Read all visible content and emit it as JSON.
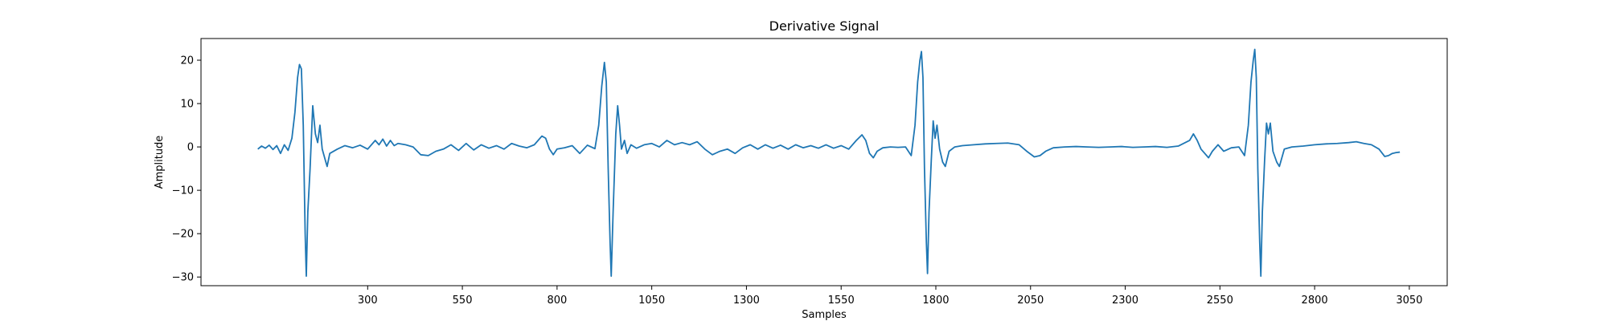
{
  "chart_data": {
    "type": "line",
    "title": "Derivative Signal",
    "xlabel": "Samples",
    "ylabel": "Amplitude",
    "xlim": [
      -140,
      3150
    ],
    "ylim": [
      -32,
      25
    ],
    "xticks": [
      300,
      550,
      800,
      1050,
      1300,
      1550,
      1800,
      2050,
      2300,
      2550,
      2800,
      3050
    ],
    "yticks": [
      -30,
      -20,
      -10,
      0,
      10,
      20
    ],
    "grid": false,
    "color": "#1f77b4",
    "series": [
      {
        "points": [
          [
            10,
            -0.5
          ],
          [
            20,
            0.2
          ],
          [
            30,
            -0.3
          ],
          [
            40,
            0.4
          ],
          [
            50,
            -0.6
          ],
          [
            60,
            0.3
          ],
          [
            70,
            -1.5
          ],
          [
            80,
            0.5
          ],
          [
            90,
            -0.8
          ],
          [
            100,
            2
          ],
          [
            108,
            8
          ],
          [
            115,
            16
          ],
          [
            120,
            19
          ],
          [
            125,
            18
          ],
          [
            130,
            5
          ],
          [
            135,
            -20
          ],
          [
            138,
            -29.8
          ],
          [
            142,
            -15
          ],
          [
            148,
            -5
          ],
          [
            155,
            9.5
          ],
          [
            162,
            3
          ],
          [
            168,
            1
          ],
          [
            174,
            5
          ],
          [
            180,
            -0.5
          ],
          [
            188,
            -3
          ],
          [
            193,
            -4.5
          ],
          [
            200,
            -1.5
          ],
          [
            220,
            -0.5
          ],
          [
            240,
            0.3
          ],
          [
            260,
            -0.2
          ],
          [
            280,
            0.4
          ],
          [
            300,
            -0.5
          ],
          [
            320,
            1.5
          ],
          [
            330,
            0.5
          ],
          [
            340,
            1.8
          ],
          [
            350,
            0.2
          ],
          [
            360,
            1.5
          ],
          [
            370,
            0.3
          ],
          [
            380,
            0.8
          ],
          [
            400,
            0.5
          ],
          [
            420,
            0
          ],
          [
            440,
            -1.8
          ],
          [
            460,
            -2
          ],
          [
            480,
            -1
          ],
          [
            500,
            -0.5
          ],
          [
            520,
            0.5
          ],
          [
            540,
            -0.8
          ],
          [
            560,
            0.8
          ],
          [
            580,
            -0.7
          ],
          [
            600,
            0.5
          ],
          [
            620,
            -0.3
          ],
          [
            640,
            0.3
          ],
          [
            660,
            -0.5
          ],
          [
            680,
            0.8
          ],
          [
            700,
            0.2
          ],
          [
            720,
            -0.2
          ],
          [
            740,
            0.5
          ],
          [
            760,
            2.5
          ],
          [
            770,
            2
          ],
          [
            780,
            -0.5
          ],
          [
            790,
            -1.8
          ],
          [
            800,
            -0.5
          ],
          [
            820,
            -0.2
          ],
          [
            840,
            0.3
          ],
          [
            860,
            -1.5
          ],
          [
            880,
            0.4
          ],
          [
            900,
            -0.4
          ],
          [
            910,
            5
          ],
          [
            918,
            14
          ],
          [
            925,
            19.5
          ],
          [
            930,
            15
          ],
          [
            935,
            -5
          ],
          [
            940,
            -22
          ],
          [
            943,
            -29.8
          ],
          [
            948,
            -15
          ],
          [
            955,
            3
          ],
          [
            960,
            9.5
          ],
          [
            965,
            5
          ],
          [
            970,
            -0.5
          ],
          [
            978,
            1.5
          ],
          [
            985,
            -1.5
          ],
          [
            995,
            0.5
          ],
          [
            1010,
            -0.3
          ],
          [
            1030,
            0.5
          ],
          [
            1050,
            0.8
          ],
          [
            1070,
            0
          ],
          [
            1090,
            1.5
          ],
          [
            1110,
            0.5
          ],
          [
            1130,
            1
          ],
          [
            1150,
            0.5
          ],
          [
            1170,
            1.2
          ],
          [
            1190,
            -0.5
          ],
          [
            1210,
            -1.8
          ],
          [
            1230,
            -1
          ],
          [
            1250,
            -0.5
          ],
          [
            1270,
            -1.5
          ],
          [
            1290,
            -0.2
          ],
          [
            1310,
            0.5
          ],
          [
            1330,
            -0.5
          ],
          [
            1350,
            0.5
          ],
          [
            1370,
            -0.3
          ],
          [
            1390,
            0.4
          ],
          [
            1410,
            -0.5
          ],
          [
            1430,
            0.5
          ],
          [
            1450,
            -0.2
          ],
          [
            1470,
            0.3
          ],
          [
            1490,
            -0.3
          ],
          [
            1510,
            0.5
          ],
          [
            1530,
            -0.3
          ],
          [
            1550,
            0.3
          ],
          [
            1570,
            -0.5
          ],
          [
            1590,
            1.5
          ],
          [
            1605,
            2.8
          ],
          [
            1615,
            1.5
          ],
          [
            1625,
            -1.5
          ],
          [
            1635,
            -2.5
          ],
          [
            1645,
            -1
          ],
          [
            1660,
            -0.2
          ],
          [
            1680,
            0
          ],
          [
            1700,
            -0.1
          ],
          [
            1720,
            0
          ],
          [
            1735,
            -2
          ],
          [
            1745,
            5
          ],
          [
            1752,
            15
          ],
          [
            1758,
            20
          ],
          [
            1762,
            22
          ],
          [
            1766,
            16
          ],
          [
            1770,
            -5
          ],
          [
            1775,
            -22
          ],
          [
            1778,
            -29.2
          ],
          [
            1782,
            -15
          ],
          [
            1788,
            -3
          ],
          [
            1793,
            6
          ],
          [
            1798,
            2
          ],
          [
            1803,
            5
          ],
          [
            1810,
            -0.5
          ],
          [
            1818,
            -3.5
          ],
          [
            1825,
            -4.5
          ],
          [
            1835,
            -1
          ],
          [
            1850,
            0
          ],
          [
            1870,
            0.3
          ],
          [
            1900,
            0.5
          ],
          [
            1930,
            0.7
          ],
          [
            1960,
            0.8
          ],
          [
            1990,
            0.9
          ],
          [
            2020,
            0.5
          ],
          [
            2040,
            -1
          ],
          [
            2060,
            -2.3
          ],
          [
            2075,
            -2
          ],
          [
            2090,
            -1
          ],
          [
            2110,
            -0.2
          ],
          [
            2140,
            0
          ],
          [
            2170,
            0.1
          ],
          [
            2200,
            0
          ],
          [
            2230,
            -0.1
          ],
          [
            2260,
            0
          ],
          [
            2290,
            0.1
          ],
          [
            2320,
            -0.1
          ],
          [
            2350,
            0
          ],
          [
            2380,
            0.1
          ],
          [
            2410,
            -0.1
          ],
          [
            2440,
            0.2
          ],
          [
            2470,
            1.5
          ],
          [
            2480,
            3
          ],
          [
            2490,
            1.5
          ],
          [
            2500,
            -0.5
          ],
          [
            2510,
            -1.5
          ],
          [
            2520,
            -2.5
          ],
          [
            2530,
            -1
          ],
          [
            2545,
            0.5
          ],
          [
            2560,
            -1
          ],
          [
            2580,
            -0.2
          ],
          [
            2600,
            0
          ],
          [
            2615,
            -2
          ],
          [
            2625,
            5
          ],
          [
            2632,
            15
          ],
          [
            2638,
            20
          ],
          [
            2642,
            22.5
          ],
          [
            2646,
            16
          ],
          [
            2650,
            -5
          ],
          [
            2655,
            -22
          ],
          [
            2658,
            -29.8
          ],
          [
            2662,
            -15
          ],
          [
            2668,
            -3
          ],
          [
            2673,
            5.5
          ],
          [
            2678,
            3
          ],
          [
            2683,
            5.5
          ],
          [
            2690,
            -1
          ],
          [
            2700,
            -3.5
          ],
          [
            2707,
            -4.5
          ],
          [
            2720,
            -0.5
          ],
          [
            2740,
            0
          ],
          [
            2770,
            0.2
          ],
          [
            2800,
            0.5
          ],
          [
            2830,
            0.7
          ],
          [
            2860,
            0.8
          ],
          [
            2890,
            1
          ],
          [
            2910,
            1.2
          ],
          [
            2930,
            0.8
          ],
          [
            2950,
            0.5
          ],
          [
            2970,
            -0.5
          ],
          [
            2985,
            -2.2
          ],
          [
            2995,
            -2
          ],
          [
            3005,
            -1.5
          ],
          [
            3015,
            -1.3
          ],
          [
            3025,
            -1.2
          ]
        ]
      }
    ]
  }
}
